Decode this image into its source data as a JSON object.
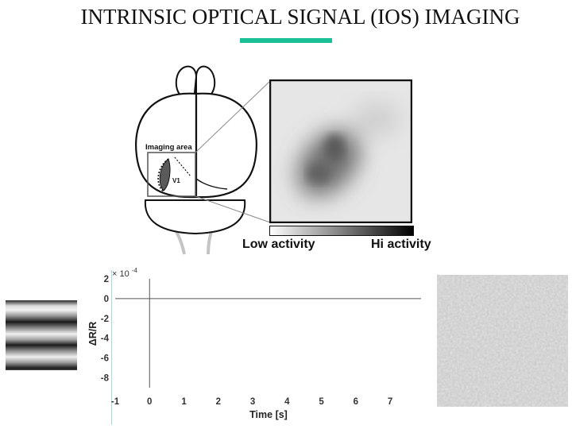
{
  "slide": {
    "title": "INTRINSIC OPTICAL SIGNAL (IOS) IMAGING",
    "accent_color": "#1bbf98"
  },
  "brain_diagram": {
    "imaging_area_label": "Imaging area",
    "region_label": "V1"
  },
  "colorbar": {
    "low_label": "Low activity",
    "high_label": "Hi activity"
  },
  "stimulus": {
    "icon": "horizontal-grating-icon"
  },
  "chart_data": {
    "type": "line",
    "title": "",
    "xlabel": "Time [s]",
    "ylabel": "ΔR/R",
    "y_exponent_label": "× 10",
    "y_exponent_power": "-4",
    "xlim": [
      -1,
      7.9
    ],
    "ylim": [
      -9,
      2
    ],
    "x_ticks": [
      -1,
      0,
      1,
      2,
      3,
      4,
      5,
      6,
      7
    ],
    "y_ticks": [
      2,
      0,
      -2,
      -4,
      -6,
      -8
    ],
    "reference_lines": {
      "horizontal_y": 0,
      "vertical_x": 0
    },
    "series": []
  }
}
